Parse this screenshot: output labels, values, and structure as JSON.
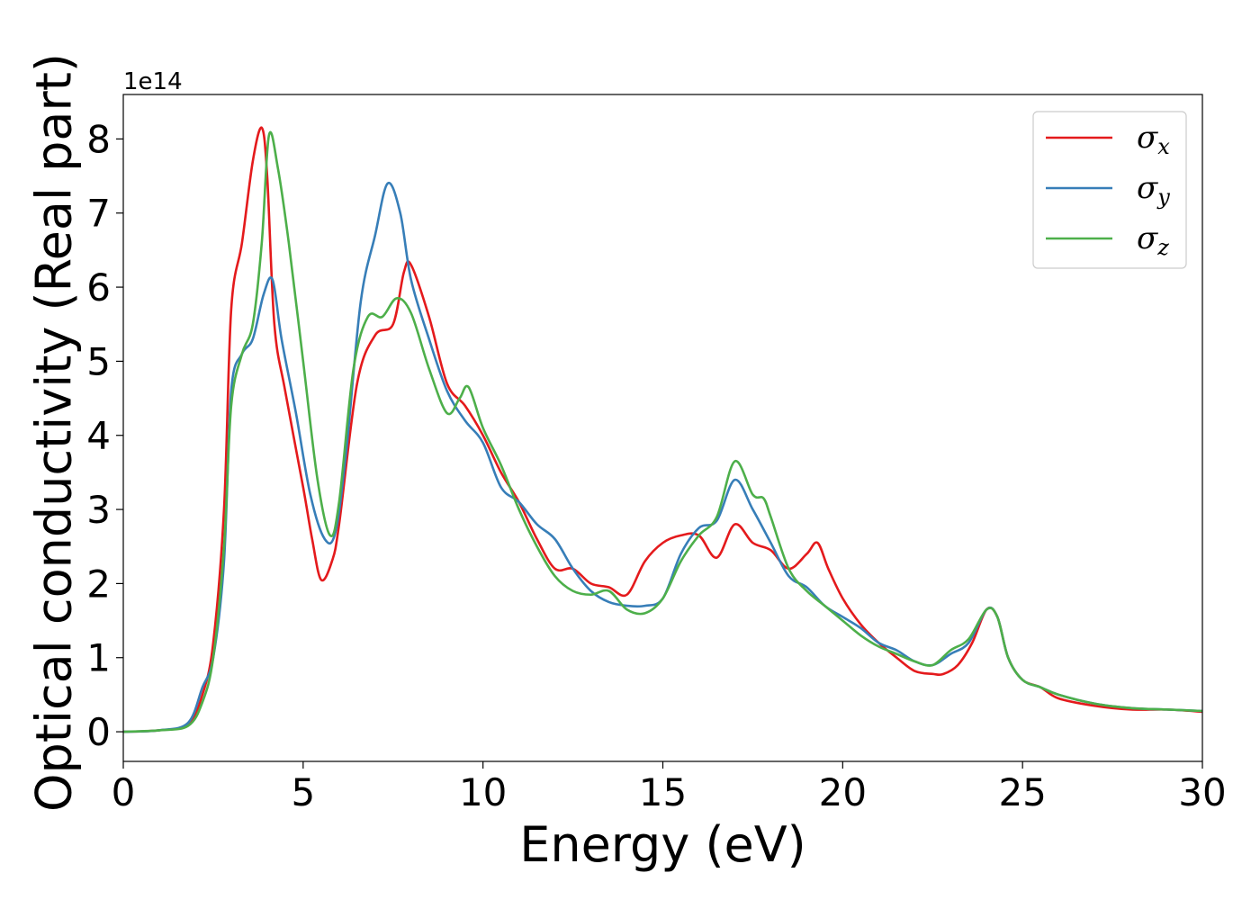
{
  "chart_data": {
    "type": "line",
    "xlabel": "Energy (eV)",
    "ylabel": "Optical conductivity (Real part)",
    "y_offset_label": "1e14",
    "xlim": [
      0,
      30
    ],
    "ylim": [
      -0.4,
      8.6
    ],
    "xticks": [
      0,
      5,
      10,
      15,
      20,
      25,
      30
    ],
    "yticks": [
      0,
      1,
      2,
      3,
      4,
      5,
      6,
      7,
      8
    ],
    "grid": false,
    "legend_position": "top-right",
    "series": [
      {
        "name": "σ_x",
        "symbol": "σ",
        "subscript": "x",
        "color": "#e41a1c",
        "x": [
          0,
          1,
          1.8,
          2.2,
          2.5,
          2.8,
          3.0,
          3.3,
          3.6,
          3.85,
          4.0,
          4.2,
          4.5,
          5.0,
          5.25,
          5.5,
          5.8,
          6.0,
          6.5,
          7.0,
          7.5,
          7.8,
          8.0,
          8.5,
          9.0,
          9.5,
          10.0,
          10.5,
          11.0,
          11.5,
          12.0,
          12.5,
          13.0,
          13.5,
          14.0,
          14.5,
          15.0,
          15.5,
          16.0,
          16.5,
          17.0,
          17.5,
          18.0,
          18.5,
          19.0,
          19.3,
          19.6,
          20.0,
          20.5,
          21.0,
          21.5,
          22.0,
          22.5,
          22.8,
          23.2,
          23.6,
          24.0,
          24.3,
          24.6,
          25.0,
          25.5,
          26.0,
          27.0,
          28.0,
          29.0,
          30.0
        ],
        "y": [
          0,
          0.02,
          0.1,
          0.5,
          1.2,
          3.0,
          5.7,
          6.6,
          7.7,
          8.15,
          7.5,
          5.5,
          4.6,
          3.3,
          2.6,
          2.05,
          2.3,
          2.8,
          4.7,
          5.35,
          5.5,
          6.2,
          6.3,
          5.6,
          4.7,
          4.4,
          4.0,
          3.5,
          3.1,
          2.6,
          2.2,
          2.2,
          2.0,
          1.95,
          1.85,
          2.3,
          2.55,
          2.65,
          2.65,
          2.35,
          2.8,
          2.55,
          2.45,
          2.2,
          2.4,
          2.55,
          2.2,
          1.8,
          1.45,
          1.2,
          1.0,
          0.82,
          0.78,
          0.78,
          0.9,
          1.2,
          1.65,
          1.55,
          1.0,
          0.7,
          0.6,
          0.45,
          0.35,
          0.3,
          0.3,
          0.27
        ]
      },
      {
        "name": "σ_y",
        "symbol": "σ",
        "subscript": "y",
        "color": "#377eb8",
        "x": [
          0,
          1,
          1.8,
          2.2,
          2.5,
          2.8,
          3.0,
          3.3,
          3.6,
          3.9,
          4.15,
          4.4,
          4.8,
          5.2,
          5.6,
          5.9,
          6.2,
          6.6,
          7.0,
          7.35,
          7.7,
          8.0,
          8.5,
          9.0,
          9.5,
          10.0,
          10.5,
          11.0,
          11.5,
          12.0,
          12.5,
          13.0,
          13.5,
          14.0,
          14.5,
          15.0,
          15.5,
          16.0,
          16.5,
          17.0,
          17.5,
          18.0,
          18.5,
          19.0,
          19.5,
          20.0,
          20.5,
          21.0,
          21.5,
          22.0,
          22.5,
          23.0,
          23.5,
          24.0,
          24.3,
          24.6,
          25.0,
          25.5,
          26.0,
          27.0,
          28.0,
          29.0,
          30.0
        ],
        "y": [
          0,
          0.02,
          0.12,
          0.6,
          1.0,
          2.3,
          4.6,
          5.1,
          5.3,
          5.9,
          6.1,
          5.3,
          4.3,
          3.2,
          2.6,
          2.7,
          3.8,
          5.8,
          6.7,
          7.4,
          7.0,
          6.1,
          5.3,
          4.6,
          4.2,
          3.9,
          3.3,
          3.1,
          2.8,
          2.6,
          2.2,
          1.9,
          1.75,
          1.7,
          1.7,
          1.8,
          2.4,
          2.75,
          2.85,
          3.4,
          3.0,
          2.55,
          2.1,
          1.95,
          1.7,
          1.55,
          1.4,
          1.2,
          1.1,
          0.95,
          0.9,
          1.05,
          1.2,
          1.65,
          1.55,
          1.0,
          0.7,
          0.6,
          0.5,
          0.38,
          0.32,
          0.3,
          0.28
        ]
      },
      {
        "name": "σ_z",
        "symbol": "σ",
        "subscript": "z",
        "color": "#4daf4a",
        "x": [
          0,
          1,
          1.8,
          2.2,
          2.5,
          2.8,
          3.0,
          3.3,
          3.6,
          3.85,
          4.05,
          4.3,
          4.6,
          5.0,
          5.4,
          5.75,
          6.0,
          6.4,
          6.8,
          7.2,
          7.6,
          8.0,
          8.5,
          9.0,
          9.35,
          9.6,
          10.0,
          10.5,
          11.0,
          11.5,
          12.0,
          12.5,
          13.0,
          13.5,
          14.0,
          14.5,
          15.0,
          15.5,
          16.0,
          16.5,
          17.0,
          17.5,
          17.8,
          18.0,
          18.5,
          19.0,
          19.5,
          20.0,
          20.5,
          21.0,
          21.5,
          22.0,
          22.5,
          23.0,
          23.5,
          24.0,
          24.3,
          24.6,
          25.0,
          25.5,
          26.0,
          27.0,
          28.0,
          29.0,
          30.0
        ],
        "y": [
          0,
          0.02,
          0.08,
          0.4,
          1.0,
          2.5,
          4.4,
          5.1,
          5.5,
          6.6,
          8.05,
          7.6,
          6.6,
          5.0,
          3.4,
          2.65,
          3.1,
          4.9,
          5.6,
          5.6,
          5.85,
          5.65,
          4.9,
          4.3,
          4.5,
          4.65,
          4.1,
          3.6,
          3.0,
          2.5,
          2.1,
          1.9,
          1.85,
          1.9,
          1.65,
          1.6,
          1.8,
          2.3,
          2.65,
          2.9,
          3.65,
          3.2,
          3.15,
          2.9,
          2.2,
          1.9,
          1.7,
          1.5,
          1.3,
          1.15,
          1.05,
          0.95,
          0.9,
          1.1,
          1.25,
          1.65,
          1.55,
          1.0,
          0.7,
          0.6,
          0.5,
          0.38,
          0.32,
          0.3,
          0.28
        ]
      }
    ]
  }
}
